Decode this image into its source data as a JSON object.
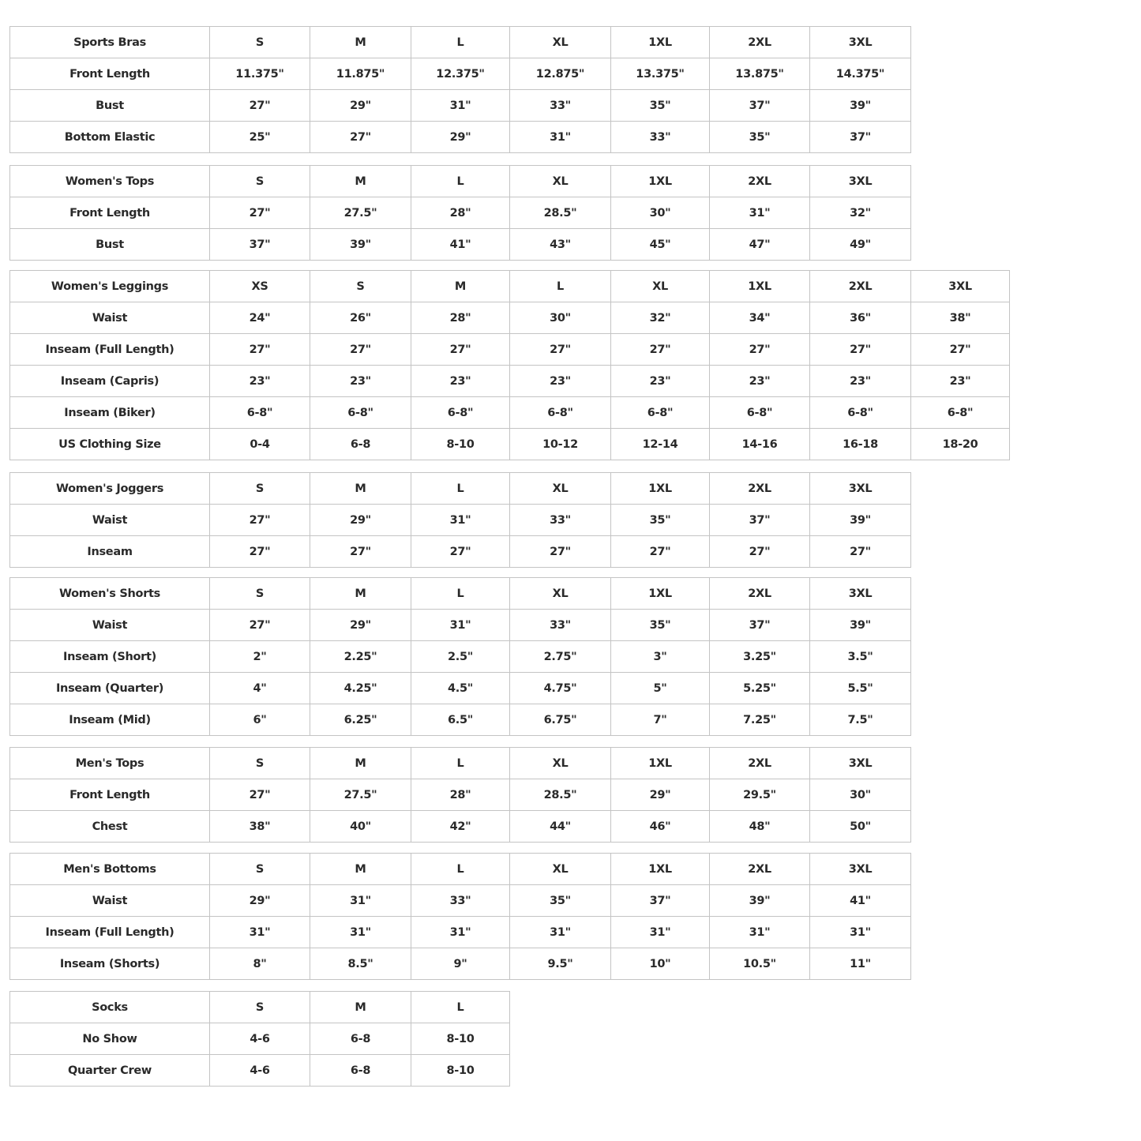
{
  "tables": [
    {
      "title": "Sports Bras",
      "sizes": [
        "S",
        "M",
        "L",
        "XL",
        "1XL",
        "2XL",
        "3XL"
      ],
      "rows": [
        {
          "label": "Front Length",
          "values": [
            "11.375\"",
            "11.875\"",
            "12.375\"",
            "12.875\"",
            "13.375\"",
            "13.875\"",
            "14.375\""
          ]
        },
        {
          "label": "Bust",
          "values": [
            "27\"",
            "29\"",
            "31\"",
            "33\"",
            "35\"",
            "37\"",
            "39\""
          ]
        },
        {
          "label": "Bottom Elastic",
          "values": [
            "25\"",
            "27\"",
            "29\"",
            "31\"",
            "33\"",
            "35\"",
            "37\""
          ]
        }
      ]
    },
    {
      "title": "Women's Tops",
      "sizes": [
        "S",
        "M",
        "L",
        "XL",
        "1XL",
        "2XL",
        "3XL"
      ],
      "rows": [
        {
          "label": "Front Length",
          "values": [
            "27\"",
            "27.5\"",
            "28\"",
            "28.5\"",
            "30\"",
            "31\"",
            "32\""
          ]
        },
        {
          "label": "Bust",
          "values": [
            "37\"",
            "39\"",
            "41\"",
            "43\"",
            "45\"",
            "47\"",
            "49\""
          ]
        }
      ]
    },
    {
      "title": "Women's Leggings",
      "sizes": [
        "XS",
        "S",
        "M",
        "L",
        "XL",
        "1XL",
        "2XL",
        "3XL"
      ],
      "rows": [
        {
          "label": "Waist",
          "values": [
            "24\"",
            "26\"",
            "28\"",
            "30\"",
            "32\"",
            "34\"",
            "36\"",
            "38\""
          ]
        },
        {
          "label": "Inseam (Full Length)",
          "values": [
            "27\"",
            "27\"",
            "27\"",
            "27\"",
            "27\"",
            "27\"",
            "27\"",
            "27\""
          ]
        },
        {
          "label": "Inseam (Capris)",
          "values": [
            "23\"",
            "23\"",
            "23\"",
            "23\"",
            "23\"",
            "23\"",
            "23\"",
            "23\""
          ]
        },
        {
          "label": "Inseam (Biker)",
          "values": [
            "6-8\"",
            "6-8\"",
            "6-8\"",
            "6-8\"",
            "6-8\"",
            "6-8\"",
            "6-8\"",
            "6-8\""
          ]
        },
        {
          "label": "US Clothing Size",
          "values": [
            "0-4",
            "6-8",
            "8-10",
            "10-12",
            "12-14",
            "14-16",
            "16-18",
            "18-20"
          ]
        }
      ]
    },
    {
      "title": "Women's Joggers",
      "sizes": [
        "S",
        "M",
        "L",
        "XL",
        "1XL",
        "2XL",
        "3XL"
      ],
      "rows": [
        {
          "label": "Waist",
          "values": [
            "27\"",
            "29\"",
            "31\"",
            "33\"",
            "35\"",
            "37\"",
            "39\""
          ]
        },
        {
          "label": "Inseam",
          "values": [
            "27\"",
            "27\"",
            "27\"",
            "27\"",
            "27\"",
            "27\"",
            "27\""
          ]
        }
      ]
    },
    {
      "title": "Women's Shorts",
      "sizes": [
        "S",
        "M",
        "L",
        "XL",
        "1XL",
        "2XL",
        "3XL"
      ],
      "rows": [
        {
          "label": "Waist",
          "values": [
            "27\"",
            "29\"",
            "31\"",
            "33\"",
            "35\"",
            "37\"",
            "39\""
          ]
        },
        {
          "label": "Inseam (Short)",
          "values": [
            "2\"",
            "2.25\"",
            "2.5\"",
            "2.75\"",
            "3\"",
            "3.25\"",
            "3.5\""
          ]
        },
        {
          "label": "Inseam (Quarter)",
          "values": [
            "4\"",
            "4.25\"",
            "4.5\"",
            "4.75\"",
            "5\"",
            "5.25\"",
            "5.5\""
          ]
        },
        {
          "label": "Inseam (Mid)",
          "values": [
            "6\"",
            "6.25\"",
            "6.5\"",
            "6.75\"",
            "7\"",
            "7.25\"",
            "7.5\""
          ]
        }
      ]
    },
    {
      "title": "Men's Tops",
      "sizes": [
        "S",
        "M",
        "L",
        "XL",
        "1XL",
        "2XL",
        "3XL"
      ],
      "rows": [
        {
          "label": "Front Length",
          "values": [
            "27\"",
            "27.5\"",
            "28\"",
            "28.5\"",
            "29\"",
            "29.5\"",
            "30\""
          ]
        },
        {
          "label": "Chest",
          "values": [
            "38\"",
            "40\"",
            "42\"",
            "44\"",
            "46\"",
            "48\"",
            "50\""
          ]
        }
      ]
    },
    {
      "title": "Men's Bottoms",
      "sizes": [
        "S",
        "M",
        "L",
        "XL",
        "1XL",
        "2XL",
        "3XL"
      ],
      "rows": [
        {
          "label": "Waist",
          "values": [
            "29\"",
            "31\"",
            "33\"",
            "35\"",
            "37\"",
            "39\"",
            "41\""
          ]
        },
        {
          "label": "Inseam (Full Length)",
          "values": [
            "31\"",
            "31\"",
            "31\"",
            "31\"",
            "31\"",
            "31\"",
            "31\""
          ]
        },
        {
          "label": "Inseam (Shorts)",
          "values": [
            "8\"",
            "8.5\"",
            "9\"",
            "9.5\"",
            "10\"",
            "10.5\"",
            "11\""
          ]
        }
      ]
    },
    {
      "title": "Socks",
      "sizes": [
        "S",
        "M",
        "L"
      ],
      "rows": [
        {
          "label": "No Show",
          "values": [
            "4-6",
            "6-8",
            "8-10"
          ]
        },
        {
          "label": "Quarter Crew",
          "values": [
            "4-6",
            "6-8",
            "8-10"
          ]
        }
      ]
    }
  ]
}
